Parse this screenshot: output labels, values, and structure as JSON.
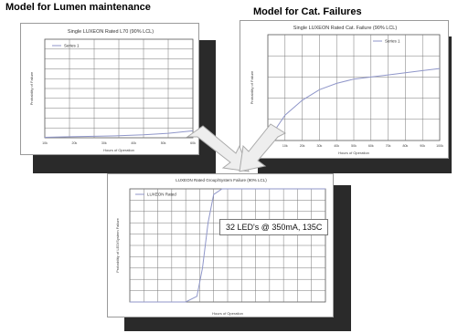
{
  "headings": {
    "lumen": "Model for Lumen maintenance",
    "failures": "Model for Cat. Failures"
  },
  "chart_data": [
    {
      "type": "line",
      "title": "Single LUXEON Rated L70 (90% LCL)",
      "xlabel": "Hours of Operation",
      "ylabel": "Probability of Failure",
      "x": [
        0,
        10000,
        20000,
        30000,
        40000,
        50000,
        60000
      ],
      "xticks": [
        "10k",
        "20k",
        "30k",
        "40k",
        "50k",
        "60k"
      ],
      "ylim": [
        0,
        1
      ],
      "series": [
        {
          "name": "Series 1",
          "x": [
            0,
            10000,
            20000,
            30000,
            40000,
            50000,
            60000
          ],
          "values": [
            0.005,
            0.01,
            0.015,
            0.02,
            0.03,
            0.045,
            0.07
          ]
        }
      ],
      "legend_position": "top-left",
      "grid": true,
      "color": "#8f96c9"
    },
    {
      "type": "line",
      "title": "Single LUXEON Rated Cat. Failure (90% LCL)",
      "xlabel": "Hours of Operation",
      "ylabel": "Probability of Failure",
      "xticks": [
        "0k",
        "10k",
        "20k",
        "30k",
        "40k",
        "50k",
        "60k",
        "70k",
        "80k",
        "90k",
        "100k"
      ],
      "ylim": [
        0,
        0.005
      ],
      "series": [
        {
          "name": "Series 1",
          "x": [
            0,
            10000,
            20000,
            30000,
            40000,
            50000,
            60000,
            70000,
            80000,
            90000,
            100000
          ],
          "values": [
            0,
            0.0012,
            0.0019,
            0.0024,
            0.0027,
            0.0029,
            0.003,
            0.0031,
            0.0032,
            0.0033,
            0.0034
          ]
        }
      ],
      "legend_position": "top-right",
      "grid": true,
      "color": "#8f96c9"
    },
    {
      "type": "line",
      "title": "LUXEON Rated Group/System Failure (90% LCL)",
      "xlabel": "Hours of Operation",
      "ylabel": "Probability of LED/System Failure",
      "x": [
        0,
        5000,
        10000,
        15000,
        20000,
        25000,
        30000,
        35000,
        40000,
        45000,
        50000,
        55000,
        60000,
        65000,
        70000
      ],
      "ylim": [
        0,
        1
      ],
      "series": [
        {
          "name": "LUXEON Rated",
          "x": [
            0,
            20000,
            24000,
            26000,
            28000,
            30000,
            33000,
            70000
          ],
          "values": [
            0,
            0.0,
            0.05,
            0.3,
            0.7,
            0.95,
            1.0,
            1.0
          ]
        }
      ],
      "annotation": "32 LED's @ 350mA, 135C",
      "legend_position": "top-left",
      "grid": true,
      "color": "#8f96c9"
    }
  ]
}
